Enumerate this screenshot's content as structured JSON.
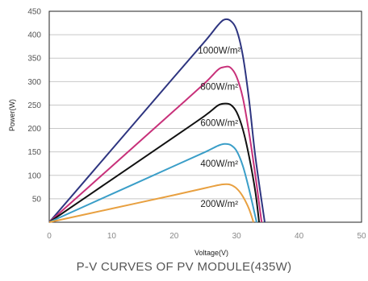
{
  "caption": "P-V CURVES OF PV MODULE(435W)",
  "chart_data": {
    "type": "line",
    "xlabel": "Voltage(V)",
    "ylabel": "Power(W)",
    "xlim": [
      0,
      50
    ],
    "ylim": [
      0,
      450
    ],
    "xticks": [
      "0",
      "10",
      "20",
      "30",
      "40",
      "50"
    ],
    "yticks": [
      "50",
      "100",
      "150",
      "200",
      "250",
      "300",
      "350",
      "400",
      "450"
    ],
    "grid": "horizontal",
    "series": [
      {
        "name": "1000W/m²",
        "color": "#2e3580",
        "x": [
          0,
          10,
          20,
          25,
          27,
          28,
          29,
          30,
          31,
          32,
          33,
          34.5
        ],
        "y": [
          0,
          155,
          310,
          387,
          420,
          432,
          430,
          410,
          355,
          260,
          140,
          0
        ]
      },
      {
        "name": "800W/m²",
        "color": "#c8317a",
        "x": [
          0,
          10,
          20,
          25,
          27,
          28,
          29,
          30,
          31,
          32,
          33,
          34.0
        ],
        "y": [
          0,
          119,
          238,
          298,
          325,
          331,
          330,
          310,
          265,
          190,
          100,
          0
        ]
      },
      {
        "name": "600W/m²",
        "color": "#111111",
        "x": [
          0,
          10,
          20,
          25,
          27,
          28,
          29,
          30,
          31,
          32,
          33,
          33.6
        ],
        "y": [
          0,
          91,
          182,
          228,
          249,
          253,
          251,
          235,
          198,
          140,
          65,
          0
        ]
      },
      {
        "name": "400W/m²",
        "color": "#3a9ec8",
        "x": [
          0,
          10,
          20,
          25,
          27,
          28,
          29,
          30,
          31,
          32,
          33.2
        ],
        "y": [
          0,
          60,
          120,
          150,
          163,
          167,
          165,
          152,
          120,
          70,
          0
        ]
      },
      {
        "name": "200W/m²",
        "color": "#e8a040",
        "x": [
          0,
          10,
          20,
          25,
          27,
          28,
          29,
          30,
          31,
          32,
          32.7
        ],
        "y": [
          0,
          29,
          58,
          73,
          79,
          81,
          80,
          72,
          55,
          28,
          0
        ]
      }
    ]
  }
}
